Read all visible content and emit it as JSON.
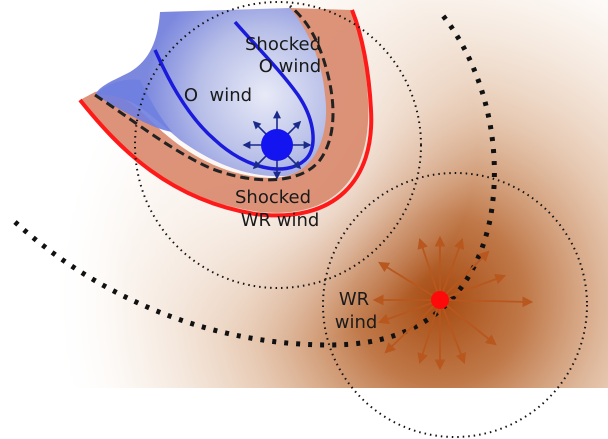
{
  "labels": {
    "shocked_o_wind_1": "Shocked",
    "shocked_o_wind_2": "O wind",
    "o_wind": "O  wind",
    "shocked_wr_wind_1": "Shocked",
    "shocked_wr_wind_2": "WR wind",
    "wr_wind_1": "WR",
    "wr_wind_2": "wind"
  },
  "colors": {
    "o_star": "#1414f0",
    "wr_star": "#ff0a0a",
    "o_wind_region": "#6f7fe0",
    "shocked_wr_region": "#d98a6e",
    "wr_wind_glow": "#a64a10",
    "contact_line": "#1b1bdc",
    "shock_line": "#ff1a1a",
    "arrow_o": "#1a2a8a",
    "arrow_wr": "#b8571e"
  }
}
